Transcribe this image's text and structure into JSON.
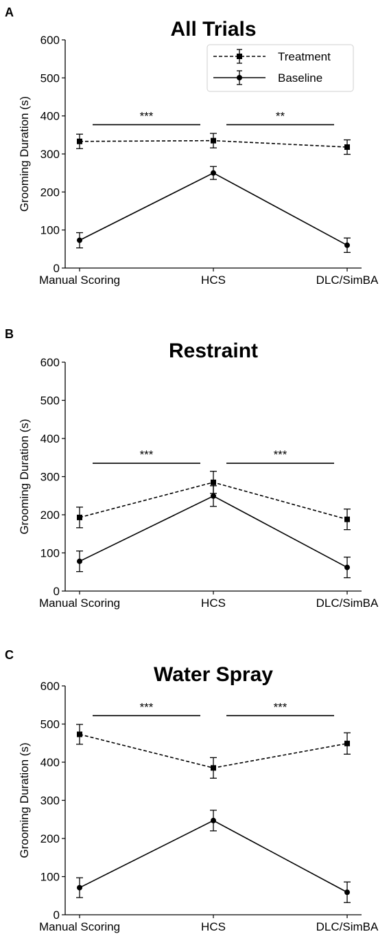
{
  "chart_data": [
    {
      "panel_label": "A",
      "type": "line",
      "title": "All Trials",
      "ylabel": "Grooming Duration (s)",
      "xlabel": "",
      "categories": [
        "Manual Scoring",
        "HCS",
        "DLC/SimBA"
      ],
      "ylim": [
        0,
        600
      ],
      "yticks": [
        "0",
        "100",
        "200",
        "300",
        "400",
        "500",
        "600"
      ],
      "series": [
        {
          "name": "Treatment",
          "style": "dashed",
          "marker": "square",
          "values": [
            333,
            335,
            318
          ],
          "errors": [
            19,
            19,
            19
          ]
        },
        {
          "name": "Baseline",
          "style": "solid",
          "marker": "circle",
          "values": [
            73,
            250,
            60
          ],
          "errors": [
            20,
            17,
            19
          ]
        }
      ],
      "legend": {
        "position": "top-right",
        "show": true
      },
      "significance": [
        {
          "from": "Manual Scoring",
          "to": "HCS",
          "label": "***",
          "y": 377
        },
        {
          "from": "HCS",
          "to": "DLC/SimBA",
          "label": "**",
          "y": 377
        }
      ],
      "grid": false
    },
    {
      "panel_label": "B",
      "type": "line",
      "title": "Restraint",
      "ylabel": "Grooming Duration (s)",
      "xlabel": "",
      "categories": [
        "Manual Scoring",
        "HCS",
        "DLC/SimBA"
      ],
      "ylim": [
        0,
        600
      ],
      "yticks": [
        "0",
        "100",
        "200",
        "300",
        "400",
        "500",
        "600"
      ],
      "series": [
        {
          "name": "Treatment",
          "style": "dashed",
          "marker": "square",
          "values": [
            193,
            285,
            188
          ],
          "errors": [
            27,
            29,
            27
          ]
        },
        {
          "name": "Baseline",
          "style": "solid",
          "marker": "circle",
          "values": [
            78,
            249,
            62
          ],
          "errors": [
            27,
            27,
            27
          ]
        }
      ],
      "legend": {
        "show": false
      },
      "significance": [
        {
          "from": "Manual Scoring",
          "to": "HCS",
          "label": "***",
          "y": 335
        },
        {
          "from": "HCS",
          "to": "DLC/SimBA",
          "label": "***",
          "y": 335
        }
      ],
      "grid": false
    },
    {
      "panel_label": "C",
      "type": "line",
      "title": "Water Spray",
      "ylabel": "Grooming Duration (s)",
      "xlabel": "",
      "categories": [
        "Manual Scoring",
        "HCS",
        "DLC/SimBA"
      ],
      "ylim": [
        0,
        600
      ],
      "yticks": [
        "0",
        "100",
        "200",
        "300",
        "400",
        "500",
        "600"
      ],
      "series": [
        {
          "name": "Treatment",
          "style": "dashed",
          "marker": "square",
          "values": [
            473,
            385,
            449
          ],
          "errors": [
            26,
            27,
            28
          ]
        },
        {
          "name": "Baseline",
          "style": "solid",
          "marker": "circle",
          "values": [
            71,
            247,
            59
          ],
          "errors": [
            26,
            27,
            27
          ]
        }
      ],
      "legend": {
        "show": false
      },
      "significance": [
        {
          "from": "Manual Scoring",
          "to": "HCS",
          "label": "***",
          "y": 522
        },
        {
          "from": "HCS",
          "to": "DLC/SimBA",
          "label": "***",
          "y": 522
        }
      ],
      "grid": false
    }
  ]
}
